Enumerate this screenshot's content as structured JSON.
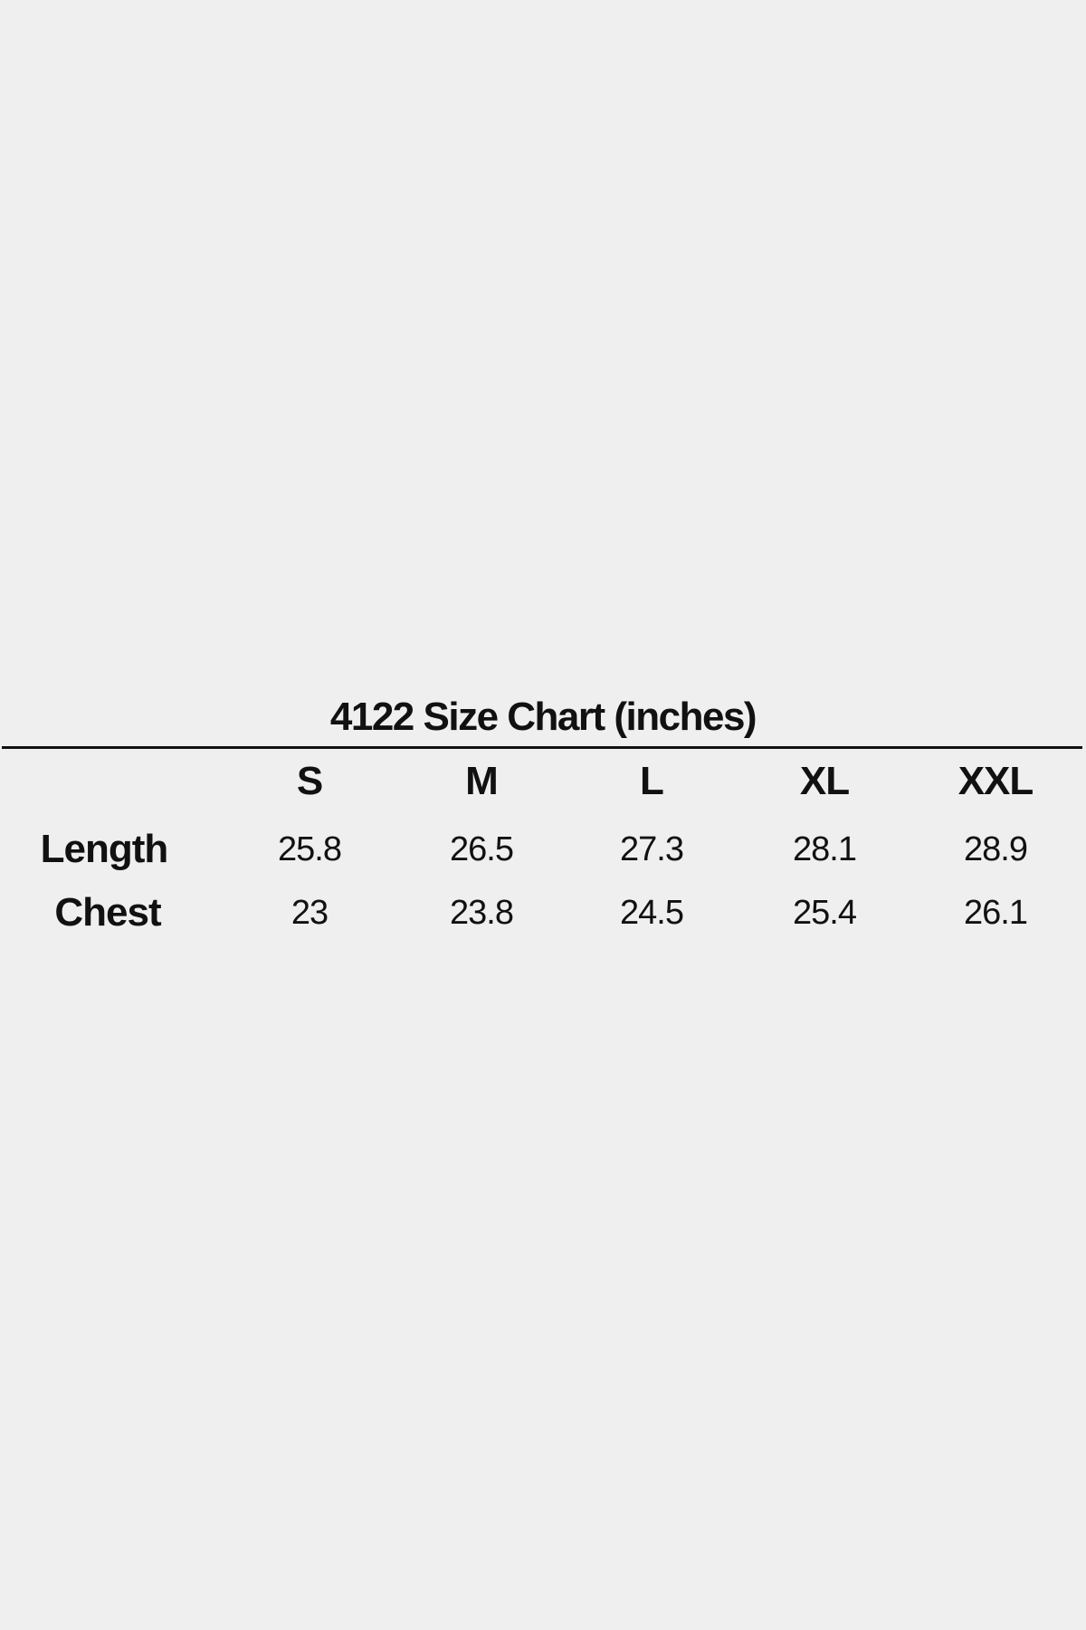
{
  "title": "4122 Size Chart (inches)",
  "table": {
    "columns": [
      "S",
      "M",
      "L",
      "XL",
      "XXL"
    ],
    "rows": [
      {
        "label": "Length",
        "values": [
          "25.8",
          "26.5",
          "27.3",
          "28.1",
          "28.9"
        ]
      },
      {
        "label": "Chest",
        "values": [
          "23",
          "23.8",
          "24.5",
          "25.4",
          "26.1"
        ]
      }
    ]
  }
}
